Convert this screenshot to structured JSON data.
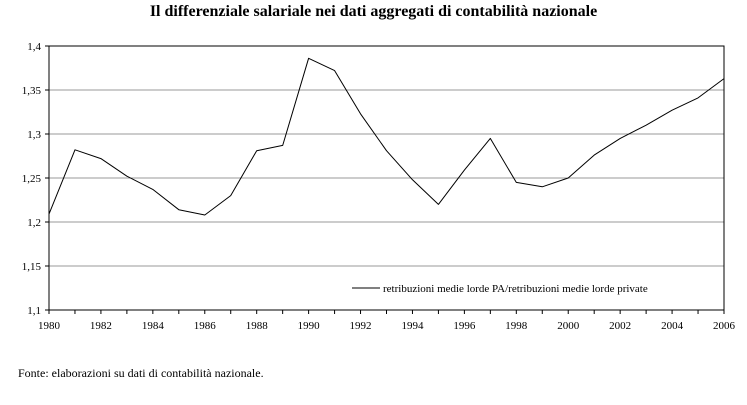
{
  "title": "Il differenziale salariale nei dati aggregati di contabilità nazionale",
  "source_note": "Fonte: elaborazioni su dati di contabilità nazionale.",
  "chart_data": {
    "type": "line",
    "title": "Il differenziale salariale nei dati aggregati di contabilità nazionale",
    "xlabel": "",
    "ylabel": "",
    "xlim": [
      1980,
      2006
    ],
    "ylim": [
      1.1,
      1.4
    ],
    "grid": true,
    "legend_position": "bottom-right",
    "x_ticks": [
      "1980",
      "1982",
      "1984",
      "1986",
      "1988",
      "1990",
      "1992",
      "1994",
      "1996",
      "1998",
      "2000",
      "2002",
      "2004",
      "2006"
    ],
    "y_ticks": [
      "1,1",
      "1,15",
      "1,2",
      "1,25",
      "1,3",
      "1,35",
      "1,4"
    ],
    "series": [
      {
        "name": "retribuzioni medie lorde PA/retribuzioni medie lorde private",
        "color": "#000000",
        "x": [
          1980,
          1981,
          1982,
          1983,
          1984,
          1985,
          1986,
          1987,
          1988,
          1989,
          1990,
          1991,
          1992,
          1993,
          1994,
          1995,
          1996,
          1997,
          1998,
          1999,
          2000,
          2001,
          2002,
          2003,
          2004,
          2005,
          2006
        ],
        "values": [
          1.209,
          1.282,
          1.272,
          1.252,
          1.237,
          1.214,
          1.208,
          1.23,
          1.281,
          1.287,
          1.386,
          1.372,
          1.323,
          1.281,
          1.248,
          1.22,
          1.259,
          1.295,
          1.245,
          1.24,
          1.25,
          1.276,
          1.295,
          1.31,
          1.327,
          1.341,
          1.363
        ]
      }
    ]
  }
}
